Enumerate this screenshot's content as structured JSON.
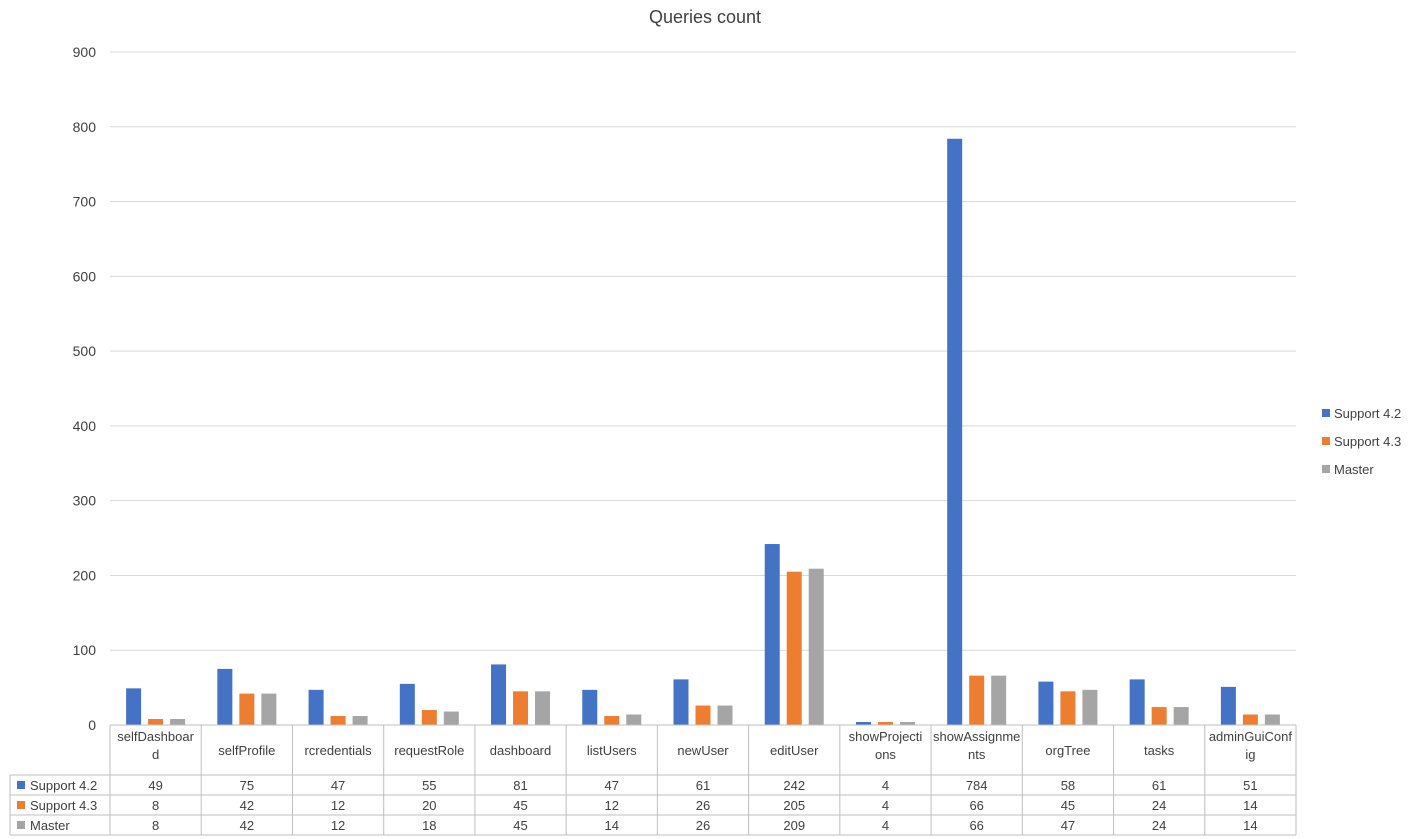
{
  "chart_data": {
    "type": "bar",
    "title": "Queries count",
    "xlabel": "",
    "ylabel": "",
    "ylim": [
      0,
      900
    ],
    "yticks": [
      0,
      100,
      200,
      300,
      400,
      500,
      600,
      700,
      800,
      900
    ],
    "grid": true,
    "legend_position": "right",
    "has_data_table": true,
    "categories": [
      "selfDashboard",
      "selfProfile",
      "rcredentials",
      "requestRole",
      "dashboard",
      "listUsers",
      "newUser",
      "editUser",
      "showProjections",
      "showAssignments",
      "orgTree",
      "tasks",
      "adminGuiConfig"
    ],
    "series": [
      {
        "name": "Support 4.2",
        "color": "#4472C4",
        "values": [
          49,
          75,
          47,
          55,
          81,
          47,
          61,
          242,
          4,
          784,
          58,
          61,
          51
        ]
      },
      {
        "name": "Support 4.3",
        "color": "#ED7D31",
        "values": [
          8,
          42,
          12,
          20,
          45,
          12,
          26,
          205,
          4,
          66,
          45,
          24,
          14
        ]
      },
      {
        "name": "Master",
        "color": "#A5A5A5",
        "values": [
          8,
          42,
          12,
          18,
          45,
          14,
          26,
          209,
          4,
          66,
          47,
          24,
          14
        ]
      }
    ]
  },
  "colors": {
    "gridline": "#D9D9D9",
    "table_border": "#BFBFBF",
    "text": "#404040"
  }
}
